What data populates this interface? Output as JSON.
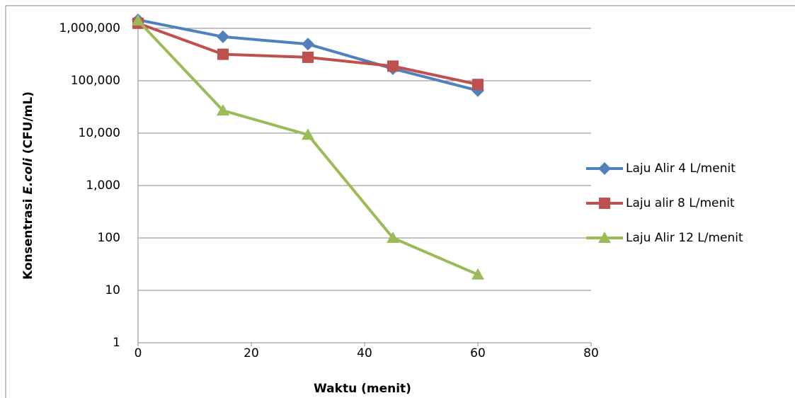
{
  "chart_data": {
    "type": "line",
    "y_label": [
      "Konsentrasi ",
      "E.coli",
      " (CFU/mL)"
    ],
    "x_label": "Waktu (menit)",
    "xlim": [
      0,
      80
    ],
    "xticks": [
      0,
      20,
      40,
      60,
      80
    ],
    "ylim": [
      1,
      1000000
    ],
    "log_y": true,
    "grid": true,
    "legend": "right",
    "yticks": [
      1,
      10,
      100,
      {
        "value": 1000,
        "label": "1,000"
      },
      {
        "value": 10000,
        "label": "10,000"
      },
      {
        "value": 100000,
        "label": "100,000"
      },
      {
        "value": 1000000,
        "label": "1,000,000"
      }
    ],
    "series": [
      {
        "name": "Laju Alir 4 L/menit",
        "color": "#4f81bd",
        "marker": "diamond",
        "x": [
          0,
          15,
          30,
          45,
          60
        ],
        "values": [
          1450000,
          690000,
          500000,
          170000,
          65000
        ]
      },
      {
        "name": "Laju alir 8 L/menit",
        "color": "#c0504d",
        "marker": "square",
        "x": [
          0,
          15,
          30,
          45,
          60
        ],
        "values": [
          1250000,
          320000,
          280000,
          190000,
          85000
        ]
      },
      {
        "name": "Laju Alir 12 L/menit",
        "color": "#9bbb59",
        "marker": "triangle",
        "x": [
          0,
          15,
          30,
          45,
          60
        ],
        "values": [
          1400000,
          27000,
          9300,
          100,
          20
        ]
      }
    ]
  }
}
